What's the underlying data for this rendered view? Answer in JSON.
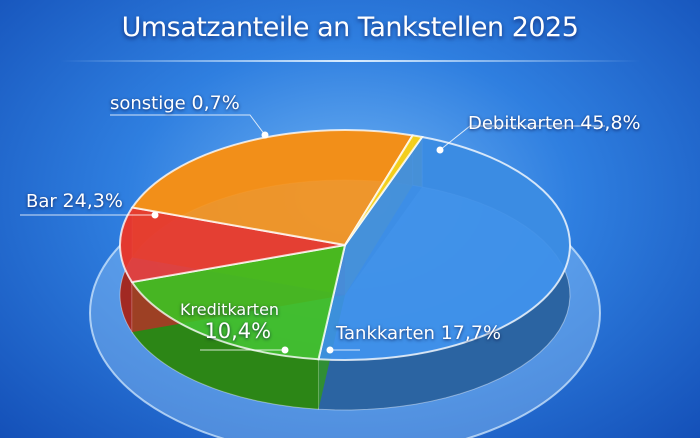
{
  "chart_data": {
    "type": "pie",
    "title": "Umsatzanteile an Tankstellen 2025",
    "slices": [
      {
        "label": "Debitkarten",
        "value": 45.8,
        "value_label": "45,8%",
        "color": "#3d8fe8"
      },
      {
        "label": "Tankkarten",
        "value": 17.7,
        "value_label": "17,7%",
        "color": "#3fbf1f"
      },
      {
        "label": "Kreditkarten",
        "value": 10.4,
        "value_label": "10,4%",
        "color": "#e83a32"
      },
      {
        "label": "Bar",
        "value": 24.3,
        "value_label": "24,3%",
        "color": "#f7931a"
      },
      {
        "label": "sonstige",
        "value": 0.7,
        "value_label": "0,7%",
        "color": "#f7d21c"
      }
    ]
  }
}
